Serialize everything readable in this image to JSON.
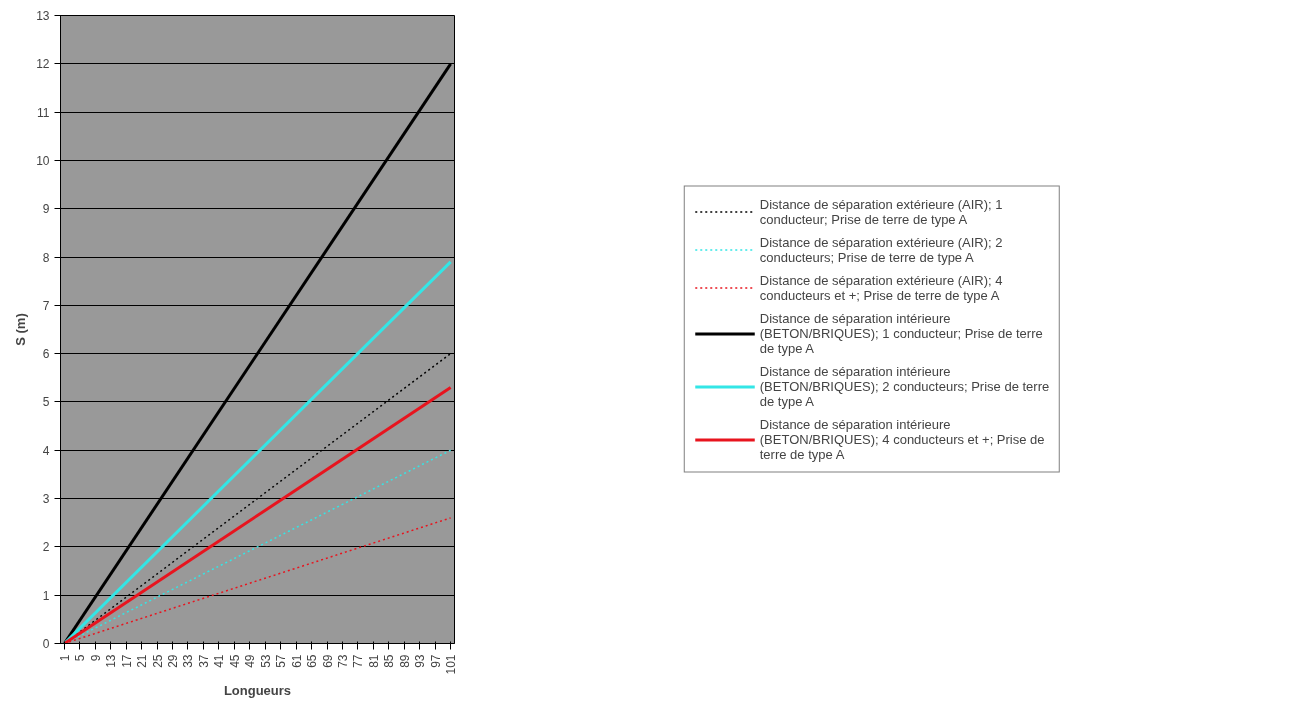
{
  "chart_data": {
    "type": "line",
    "xlabel": "Longueurs",
    "ylabel": "S (m)",
    "xlim": [
      0,
      102
    ],
    "ylim": [
      0,
      13
    ],
    "xticks": [
      1,
      5,
      9,
      13,
      17,
      21,
      25,
      29,
      33,
      37,
      41,
      45,
      49,
      53,
      57,
      61,
      65,
      69,
      73,
      77,
      81,
      85,
      89,
      93,
      97,
      101
    ],
    "yticks": [
      0,
      1,
      2,
      3,
      4,
      5,
      6,
      7,
      8,
      9,
      10,
      11,
      12,
      13
    ],
    "grid": "y",
    "legend": "right",
    "marker": "none",
    "x": [
      1,
      101
    ],
    "series": [
      {
        "name": "Distance de séparation extérieure (AIR); 1 conducteur; Prise de terre de type A",
        "color": "#000000",
        "line_style": "dotted",
        "values": [
          0,
          6
        ]
      },
      {
        "name": "Distance de séparation extérieure (AIR); 2 conducteurs; Prise de terre de type A",
        "color": "#33e6e6",
        "line_style": "dotted",
        "values": [
          0,
          4
        ]
      },
      {
        "name": "Distance de séparation extérieure (AIR); 4 conducteurs et +; Prise de terre de type A",
        "color": "#e8141e",
        "line_style": "dotted",
        "values": [
          0,
          2.6
        ]
      },
      {
        "name": "Distance de séparation intérieure (BETON/BRIQUES); 1 conducteur; Prise de terre de type A",
        "color": "#000000",
        "line_style": "solid",
        "values": [
          0,
          12
        ]
      },
      {
        "name": "Distance de séparation intérieure (BETON/BRIQUES); 2 conducteurs; Prise de terre de type A",
        "color": "#33e6e6",
        "line_style": "solid",
        "values": [
          0,
          7.9
        ]
      },
      {
        "name": "Distance de séparation intérieure (BETON/BRIQUES); 4 conducteurs et +; Prise de terre de type A",
        "color": "#e8141e",
        "line_style": "solid",
        "values": [
          0,
          5.3
        ]
      }
    ]
  }
}
